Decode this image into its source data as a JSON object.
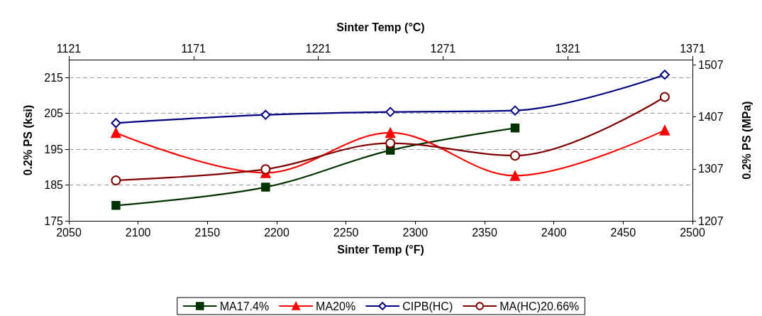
{
  "chart_data": {
    "type": "line",
    "xlabel": "Sinter Temp (°F)",
    "x2label": "Sinter Temp (°C)",
    "ylabel": "0.2% PS (ksi)",
    "y2label": "0.2% PS (MPa)",
    "x": [
      2084,
      2192,
      2282,
      2372,
      2480
    ],
    "series": [
      {
        "name": "MA17.4%",
        "color": "#003300",
        "marker": "square",
        "values": [
          179.3,
          184.4,
          194.7,
          200.9,
          null
        ]
      },
      {
        "name": "MA20%",
        "color": "#ff0000",
        "marker": "triangle",
        "values": [
          199.6,
          188.4,
          199.6,
          187.6,
          200.3
        ]
      },
      {
        "name": "CIPB(HC)",
        "color": "#000080",
        "marker": "diamond",
        "values": [
          202.3,
          204.6,
          205.4,
          205.8,
          215.8
        ]
      },
      {
        "name": "MA(HC)20.66%",
        "color": "#800000",
        "marker": "circle",
        "values": [
          186.3,
          189.4,
          196.7,
          193.2,
          209.6
        ]
      }
    ],
    "xlim": [
      2050,
      2500
    ],
    "xticks": [
      2050,
      2100,
      2150,
      2200,
      2250,
      2300,
      2350,
      2400,
      2450,
      2500
    ],
    "x2lim": [
      1121,
      1371
    ],
    "x2ticks": [
      1121,
      1171,
      1221,
      1271,
      1321,
      1371
    ],
    "ylim": [
      175,
      220
    ],
    "yticks": [
      175,
      185,
      195,
      205,
      215
    ],
    "y2lim": [
      1207,
      1517
    ],
    "y2ticks": [
      1207,
      1307,
      1407,
      1507
    ],
    "grid": "y",
    "legend": "bottom",
    "line_style": "solid"
  }
}
